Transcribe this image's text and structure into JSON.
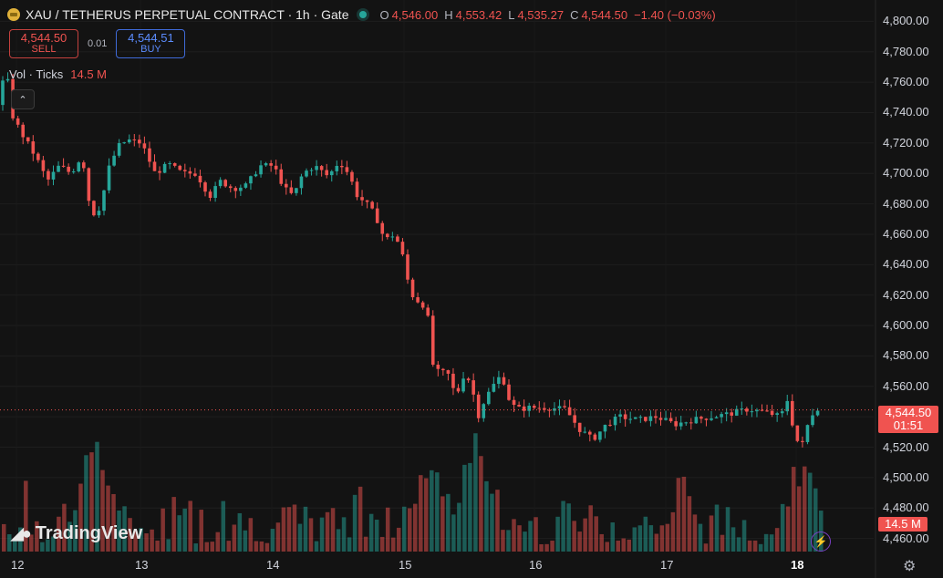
{
  "header": {
    "title": "XAU / TETHERUS PERPETUAL CONTRACT · 1h · Gate",
    "ohlc": [
      {
        "key": "O",
        "value": "4,546.00"
      },
      {
        "key": "H",
        "value": "4,553.42"
      },
      {
        "key": "L",
        "value": "4,535.27"
      },
      {
        "key": "C",
        "value": "4,544.50"
      }
    ],
    "change": "−1.40 (−0.03%)"
  },
  "trade": {
    "sell_price": "4,544.50",
    "sell_label": "SELL",
    "spread": "0.01",
    "buy_price": "4,544.51",
    "buy_label": "BUY"
  },
  "volume_legend": {
    "label": "Vol · Ticks",
    "value": "14.5 M"
  },
  "price_axis": [
    "4,800.00",
    "4,780.00",
    "4,760.00",
    "4,740.00",
    "4,720.00",
    "4,700.00",
    "4,680.00",
    "4,660.00",
    "4,640.00",
    "4,620.00",
    "4,600.00",
    "4,580.00",
    "4,560.00",
    "4,540.00",
    "4,520.00",
    "4,500.00",
    "4,480.00",
    "4,460.00"
  ],
  "time_axis": [
    "12",
    "13",
    "14",
    "15",
    "16",
    "17",
    "18"
  ],
  "last_price": {
    "price": "4,544.50",
    "countdown": "01:51"
  },
  "volume_tag": "14.5 M",
  "brand": "TradingView",
  "colors": {
    "up": "#26a69a",
    "down": "#ef5350",
    "background": "#131313"
  },
  "chart_data": {
    "type": "candlestick",
    "interval": "1h",
    "ylim": [
      4455,
      4805
    ],
    "x_ticks": [
      "12",
      "13",
      "14",
      "15",
      "16",
      "17",
      "18"
    ],
    "path": [
      [
        0,
        4745
      ],
      [
        6,
        4775
      ],
      [
        12,
        4740
      ],
      [
        22,
        4728
      ],
      [
        40,
        4710
      ],
      [
        52,
        4695
      ],
      [
        65,
        4705
      ],
      [
        78,
        4700
      ],
      [
        90,
        4712
      ],
      [
        100,
        4672
      ],
      [
        110,
        4678
      ],
      [
        120,
        4705
      ],
      [
        130,
        4718
      ],
      [
        140,
        4722
      ],
      [
        155,
        4720
      ],
      [
        170,
        4700
      ],
      [
        185,
        4706
      ],
      [
        200,
        4700
      ],
      [
        215,
        4700
      ],
      [
        230,
        4685
      ],
      [
        242,
        4695
      ],
      [
        255,
        4690
      ],
      [
        270,
        4692
      ],
      [
        285,
        4705
      ],
      [
        300,
        4705
      ],
      [
        312,
        4690
      ],
      [
        322,
        4685
      ],
      [
        332,
        4700
      ],
      [
        345,
        4705
      ],
      [
        360,
        4698
      ],
      [
        372,
        4708
      ],
      [
        382,
        4700
      ],
      [
        392,
        4685
      ],
      [
        402,
        4680
      ],
      [
        412,
        4672
      ],
      [
        422,
        4656
      ],
      [
        432,
        4660
      ],
      [
        440,
        4650
      ],
      [
        446,
        4632
      ],
      [
        452,
        4620
      ],
      [
        460,
        4615
      ],
      [
        468,
        4612
      ],
      [
        474,
        4575
      ],
      [
        482,
        4568
      ],
      [
        490,
        4570
      ],
      [
        500,
        4553
      ],
      [
        510,
        4570
      ],
      [
        518,
        4558
      ],
      [
        524,
        4540
      ],
      [
        532,
        4552
      ],
      [
        540,
        4560
      ],
      [
        550,
        4568
      ],
      [
        560,
        4548
      ],
      [
        570,
        4545
      ],
      [
        580,
        4546
      ],
      [
        600,
        4546
      ],
      [
        620,
        4545
      ],
      [
        635,
        4532
      ],
      [
        650,
        4525
      ],
      [
        665,
        4535
      ],
      [
        680,
        4540
      ],
      [
        700,
        4538
      ],
      [
        720,
        4540
      ],
      [
        740,
        4535
      ],
      [
        760,
        4538
      ],
      [
        780,
        4540
      ],
      [
        800,
        4542
      ],
      [
        820,
        4545
      ],
      [
        840,
        4543
      ],
      [
        856,
        4540
      ],
      [
        864,
        4552
      ],
      [
        872,
        4525
      ],
      [
        880,
        4522
      ],
      [
        888,
        4540
      ],
      [
        896,
        4546
      ],
      [
        902,
        4545
      ]
    ],
    "volume_bars": 150,
    "volume_spikes": [
      {
        "day_x": 101,
        "rel": 1.0
      },
      {
        "day_x": 472,
        "rel": 0.88
      },
      {
        "day_x": 520,
        "rel": 0.95
      },
      {
        "day_x": 878,
        "rel": 0.82
      }
    ]
  }
}
